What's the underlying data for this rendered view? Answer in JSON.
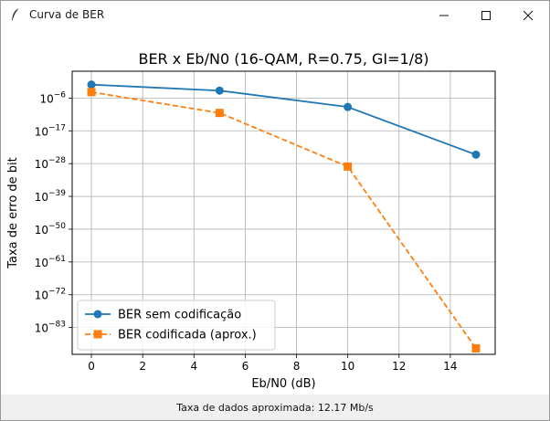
{
  "window": {
    "title": "Curva de BER",
    "icon": "feather-icon",
    "controls": [
      "minimize-icon",
      "maximize-icon",
      "close-icon"
    ]
  },
  "status": {
    "text": "Taxa de dados aproximada: 12.17 Mb/s"
  },
  "chart_data": {
    "type": "line",
    "title": "BER x Eb/N0 (16-QAM, R=0.75, GI=1/8)",
    "xlabel": "Eb/N0 (dB)",
    "ylabel": "Taxa de erro de bit",
    "y_scale": "log",
    "grid": true,
    "legend_position": "lower-left",
    "xlim": [
      -0.75,
      15.75
    ],
    "ylim_log10": [
      -92,
      3
    ],
    "x_ticks": [
      0,
      2,
      4,
      6,
      8,
      10,
      12,
      14
    ],
    "x_tick_labels": [
      "0",
      "2",
      "4",
      "6",
      "8",
      "10",
      "12",
      "14"
    ],
    "y_ticks_log10": [
      -83,
      -72,
      -61,
      -50,
      -39,
      -28,
      -17,
      -6
    ],
    "y_tick_labels": [
      {
        "base": "10",
        "exp": "−83"
      },
      {
        "base": "10",
        "exp": "−72"
      },
      {
        "base": "10",
        "exp": "−61"
      },
      {
        "base": "10",
        "exp": "−50"
      },
      {
        "base": "10",
        "exp": "−39"
      },
      {
        "base": "10",
        "exp": "−28"
      },
      {
        "base": "10",
        "exp": "−17"
      },
      {
        "base": "10",
        "exp": "−6"
      }
    ],
    "x": [
      0,
      5,
      10,
      15
    ],
    "series": [
      {
        "name": "BER sem codificação",
        "color": "#1f77b4",
        "linestyle": "solid",
        "marker": "circle",
        "log10_values": [
          -1.5,
          -3.5,
          -9,
          -25
        ]
      },
      {
        "name": "BER codificada (aprox.)",
        "color": "#ff7f0e",
        "linestyle": "dashed",
        "marker": "square",
        "log10_values": [
          -4,
          -11,
          -29,
          -90
        ]
      }
    ]
  }
}
